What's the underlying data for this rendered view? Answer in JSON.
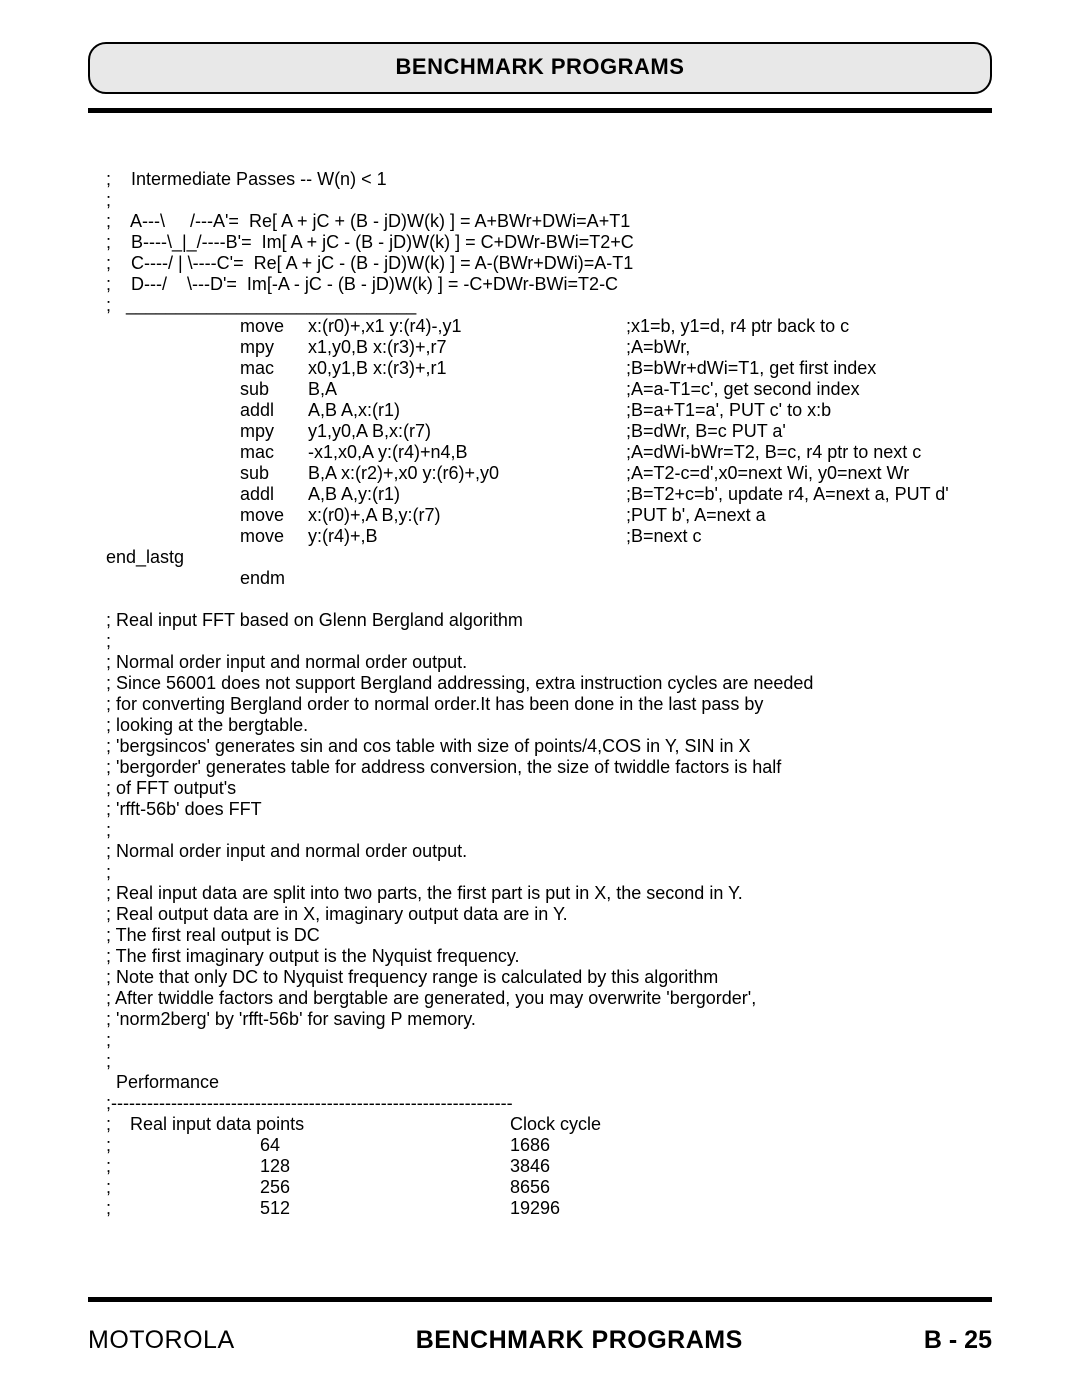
{
  "header": {
    "title": "BENCHMARK PROGRAMS"
  },
  "intro": [
    ";    Intermediate Passes -- W(n) < 1",
    ";",
    ";    A---\\     /---A'=  Re[ A + jC + (B - jD)W(k) ] = A+BWr+DWi=A+T1",
    ";    B----\\_|_/----B'=  Im[ A + jC - (B - jD)W(k) ] = C+DWr-BWi=T2+C",
    ";    C----/ | \\----C'=  Re[ A + jC - (B - jD)W(k) ] = A-(BWr+DWi)=A-T1",
    ";    D---/    \\---D'=  Im[-A - jC - (B - jD)W(k) ] = -C+DWr-BWi=T2-C",
    ";   _____________________________"
  ],
  "code": [
    {
      "lbl": "",
      "mne": "move",
      "ops": "x:(r0)+,x1 y:(r4)-,y1",
      "cmt": ";x1=b, y1=d, r4 ptr back to c"
    },
    {
      "lbl": "",
      "mne": "mpy",
      "ops": "x1,y0,B x:(r3)+,r7",
      "cmt": ";A=bWr,"
    },
    {
      "lbl": "",
      "mne": "mac",
      "ops": "x0,y1,B  x:(r3)+,r1",
      "cmt": ";B=bWr+dWi=T1, get first index"
    },
    {
      "lbl": "",
      "mne": "sub",
      "ops": "B,A",
      "cmt": ";A=a-T1=c', get second index"
    },
    {
      "lbl": "",
      "mne": "addl",
      "ops": "A,B     A,x:(r1)",
      "cmt": ";B=a+T1=a', PUT c' to x:b"
    },
    {
      "lbl": "",
      "mne": "mpy",
      "ops": "y1,y0,A B,x:(r7)",
      "cmt": ";B=dWr, B=c PUT a'"
    },
    {
      "lbl": "",
      "mne": "mac",
      "ops": "-x1,x0,A y:(r4)+n4,B",
      "cmt": ";A=dWi-bWr=T2, B=c, r4 ptr to next c"
    },
    {
      "lbl": "",
      "mne": "sub",
      "ops": "B,A    x:(r2)+,x0 y:(r6)+,y0",
      "cmt": ";A=T2-c=d',x0=next Wi, y0=next Wr"
    },
    {
      "lbl": "",
      "mne": "addl",
      "ops": "A,B   A,y:(r1)",
      "cmt": ";B=T2+c=b', update r4, A=next a, PUT d'"
    },
    {
      "lbl": "",
      "mne": "move",
      "ops": "x:(r0)+,A  B,y:(r7)",
      "cmt": ";PUT b', A=next a"
    },
    {
      "lbl": "",
      "mne": "move",
      "ops": "y:(r4)+,B",
      "cmt": ";B=next c"
    },
    {
      "lbl": "end_lastg",
      "mne": "",
      "ops": "",
      "cmt": ""
    },
    {
      "lbl": "",
      "mne": "endm",
      "ops": "",
      "cmt": ""
    }
  ],
  "comments": [
    "; Real input FFT based on Glenn Bergland algorithm",
    ";",
    "; Normal order input and normal order output.",
    "; Since 56001 does not support Bergland addressing, extra instruction cycles are needed",
    "; for converting Bergland order to normal order.It has been done in the last pass by",
    "; looking at the bergtable.",
    "; 'bergsincos' generates sin and cos table with size of points/4,COS in Y, SIN in X",
    "; 'bergorder' generates table for address conversion, the size of twiddle factors is half",
    "; of FFT output's",
    "; 'rfft-56b' does FFT",
    ";",
    "; Normal order input and normal order output.",
    ";",
    "; Real input data are split into two parts, the first part is put in X, the second in Y.",
    "; Real output data are in X, imaginary output data are in Y.",
    "; The first real output is DC",
    "; The first imaginary output is the Nyquist frequency.",
    "; Note that only DC to Nyquist frequency range is calculated by this algorithm",
    "; After twiddle factors and bergtable are generated, you may overwrite 'bergorder',",
    "; 'norm2berg' by 'rfft-56b' for saving P memory.",
    ";",
    ";",
    "  Performance",
    ";-------------------------------------------------------------------"
  ],
  "perf": {
    "header": {
      "a": ";",
      "b": "Real input data points",
      "c": "Clock cycle"
    },
    "rows": [
      {
        "a": ";",
        "b": "64",
        "c": "1686"
      },
      {
        "a": ";",
        "b": "128",
        "c": "3846"
      },
      {
        "a": ";",
        "b": "256",
        "c": "8656"
      },
      {
        "a": ";",
        "b": "512",
        "c": "19296"
      }
    ]
  },
  "footer": {
    "left": "MOTOROLA",
    "mid": "BENCHMARK PROGRAMS",
    "right": "B - 25"
  }
}
